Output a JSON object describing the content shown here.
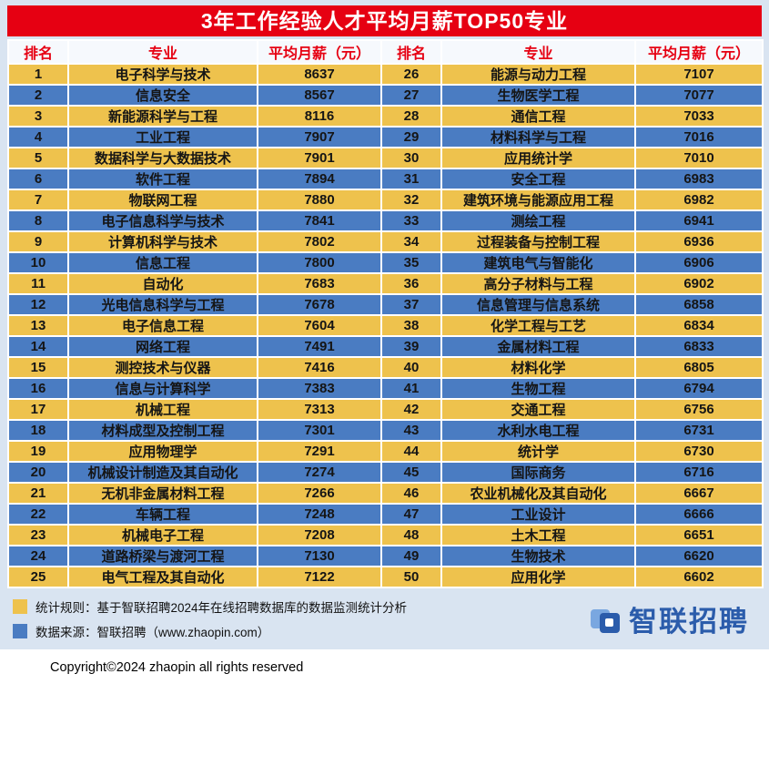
{
  "chart_data": {
    "type": "table",
    "title": "3年工作经验人才平均月薪TOP50专业",
    "columns": [
      "排名",
      "专业",
      "平均月薪（元）",
      "排名",
      "专业",
      "平均月薪（元）"
    ],
    "left": [
      {
        "rank": "1",
        "major": "电子科学与技术",
        "salary": "8637"
      },
      {
        "rank": "2",
        "major": "信息安全",
        "salary": "8567"
      },
      {
        "rank": "3",
        "major": "新能源科学与工程",
        "salary": "8116"
      },
      {
        "rank": "4",
        "major": "工业工程",
        "salary": "7907"
      },
      {
        "rank": "5",
        "major": "数据科学与大数据技术",
        "salary": "7901"
      },
      {
        "rank": "6",
        "major": "软件工程",
        "salary": "7894"
      },
      {
        "rank": "7",
        "major": "物联网工程",
        "salary": "7880"
      },
      {
        "rank": "8",
        "major": "电子信息科学与技术",
        "salary": "7841"
      },
      {
        "rank": "9",
        "major": "计算机科学与技术",
        "salary": "7802"
      },
      {
        "rank": "10",
        "major": "信息工程",
        "salary": "7800"
      },
      {
        "rank": "11",
        "major": "自动化",
        "salary": "7683"
      },
      {
        "rank": "12",
        "major": "光电信息科学与工程",
        "salary": "7678"
      },
      {
        "rank": "13",
        "major": "电子信息工程",
        "salary": "7604"
      },
      {
        "rank": "14",
        "major": "网络工程",
        "salary": "7491"
      },
      {
        "rank": "15",
        "major": "测控技术与仪器",
        "salary": "7416"
      },
      {
        "rank": "16",
        "major": "信息与计算科学",
        "salary": "7383"
      },
      {
        "rank": "17",
        "major": "机械工程",
        "salary": "7313"
      },
      {
        "rank": "18",
        "major": "材料成型及控制工程",
        "salary": "7301"
      },
      {
        "rank": "19",
        "major": "应用物理学",
        "salary": "7291"
      },
      {
        "rank": "20",
        "major": "机械设计制造及其自动化",
        "salary": "7274"
      },
      {
        "rank": "21",
        "major": "无机非金属材料工程",
        "salary": "7266"
      },
      {
        "rank": "22",
        "major": "车辆工程",
        "salary": "7248"
      },
      {
        "rank": "23",
        "major": "机械电子工程",
        "salary": "7208"
      },
      {
        "rank": "24",
        "major": "道路桥梁与渡河工程",
        "salary": "7130"
      },
      {
        "rank": "25",
        "major": "电气工程及其自动化",
        "salary": "7122"
      }
    ],
    "right": [
      {
        "rank": "26",
        "major": "能源与动力工程",
        "salary": "7107"
      },
      {
        "rank": "27",
        "major": "生物医学工程",
        "salary": "7077"
      },
      {
        "rank": "28",
        "major": "通信工程",
        "salary": "7033"
      },
      {
        "rank": "29",
        "major": "材料科学与工程",
        "salary": "7016"
      },
      {
        "rank": "30",
        "major": "应用统计学",
        "salary": "7010"
      },
      {
        "rank": "31",
        "major": "安全工程",
        "salary": "6983"
      },
      {
        "rank": "32",
        "major": "建筑环境与能源应用工程",
        "salary": "6982"
      },
      {
        "rank": "33",
        "major": "测绘工程",
        "salary": "6941"
      },
      {
        "rank": "34",
        "major": "过程装备与控制工程",
        "salary": "6936"
      },
      {
        "rank": "35",
        "major": "建筑电气与智能化",
        "salary": "6906"
      },
      {
        "rank": "36",
        "major": "高分子材料与工程",
        "salary": "6902"
      },
      {
        "rank": "37",
        "major": "信息管理与信息系统",
        "salary": "6858"
      },
      {
        "rank": "38",
        "major": "化学工程与工艺",
        "salary": "6834"
      },
      {
        "rank": "39",
        "major": "金属材料工程",
        "salary": "6833"
      },
      {
        "rank": "40",
        "major": "材料化学",
        "salary": "6805"
      },
      {
        "rank": "41",
        "major": "生物工程",
        "salary": "6794"
      },
      {
        "rank": "42",
        "major": "交通工程",
        "salary": "6756"
      },
      {
        "rank": "43",
        "major": "水利水电工程",
        "salary": "6731"
      },
      {
        "rank": "44",
        "major": "统计学",
        "salary": "6730"
      },
      {
        "rank": "45",
        "major": "国际商务",
        "salary": "6716"
      },
      {
        "rank": "46",
        "major": "农业机械化及其自动化",
        "salary": "6667"
      },
      {
        "rank": "47",
        "major": "工业设计",
        "salary": "6666"
      },
      {
        "rank": "48",
        "major": "土木工程",
        "salary": "6651"
      },
      {
        "rank": "49",
        "major": "生物技术",
        "salary": "6620"
      },
      {
        "rank": "50",
        "major": "应用化学",
        "salary": "6602"
      }
    ]
  },
  "footer": {
    "note1": "统计规则：基于智联招聘2024年在线招聘数据库的数据监测统计分析",
    "note2": "数据来源：智联招聘（www.zhaopin.com）",
    "logo_text": "智联招聘"
  },
  "copyright": "Copyright©2024 zhaopin all rights reserved",
  "colors": {
    "header_red": "#e60012",
    "row_gold": "#eec24d",
    "row_blue": "#4a7cc2",
    "panel_bg": "#d9e4f1",
    "header_cell_bg": "#f6f9fd",
    "logo_blue": "#2b5cab"
  }
}
